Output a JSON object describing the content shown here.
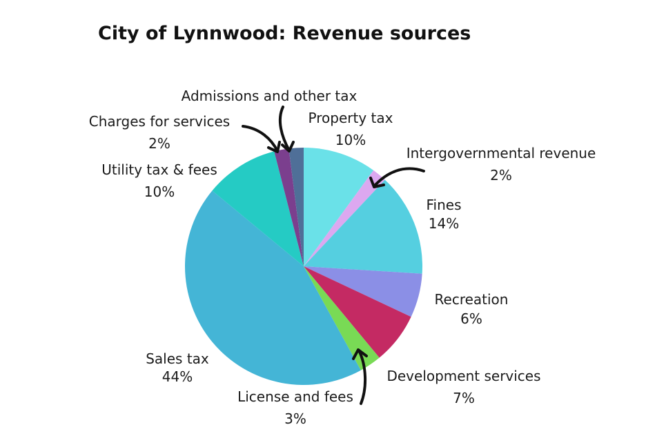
{
  "chart_data": {
    "type": "pie",
    "title": "City of Lynnwood: Revenue sources",
    "slices": [
      {
        "label": "Property tax",
        "value": 10,
        "value_label": "10%",
        "color": "#6ae1e8"
      },
      {
        "label": "Intergovernmental revenue",
        "value": 2,
        "value_label": "2%",
        "color": "#dca8f0"
      },
      {
        "label": "Fines",
        "value": 14,
        "value_label": "14%",
        "color": "#55cfe0"
      },
      {
        "label": "Recreation",
        "value": 6,
        "value_label": "6%",
        "color": "#8b8fe6"
      },
      {
        "label": "Development services",
        "value": 7,
        "value_label": "7%",
        "color": "#c42a63"
      },
      {
        "label": "License and fees",
        "value": 3,
        "value_label": "3%",
        "color": "#79da55"
      },
      {
        "label": "Sales tax",
        "value": 44,
        "value_label": "44%",
        "color": "#44b5d6"
      },
      {
        "label": "Utility tax & fees",
        "value": 10,
        "value_label": "10%",
        "color": "#25cbc4"
      },
      {
        "label": "Charges for services",
        "value": 2,
        "value_label": "2%",
        "color": "#7b3f8e"
      },
      {
        "label": "Admissions and other tax",
        "value": 2,
        "value_label": "",
        "color": "#4f6f98"
      }
    ],
    "start_angle_deg": 0,
    "direction": "clockwise",
    "legend": "none"
  }
}
